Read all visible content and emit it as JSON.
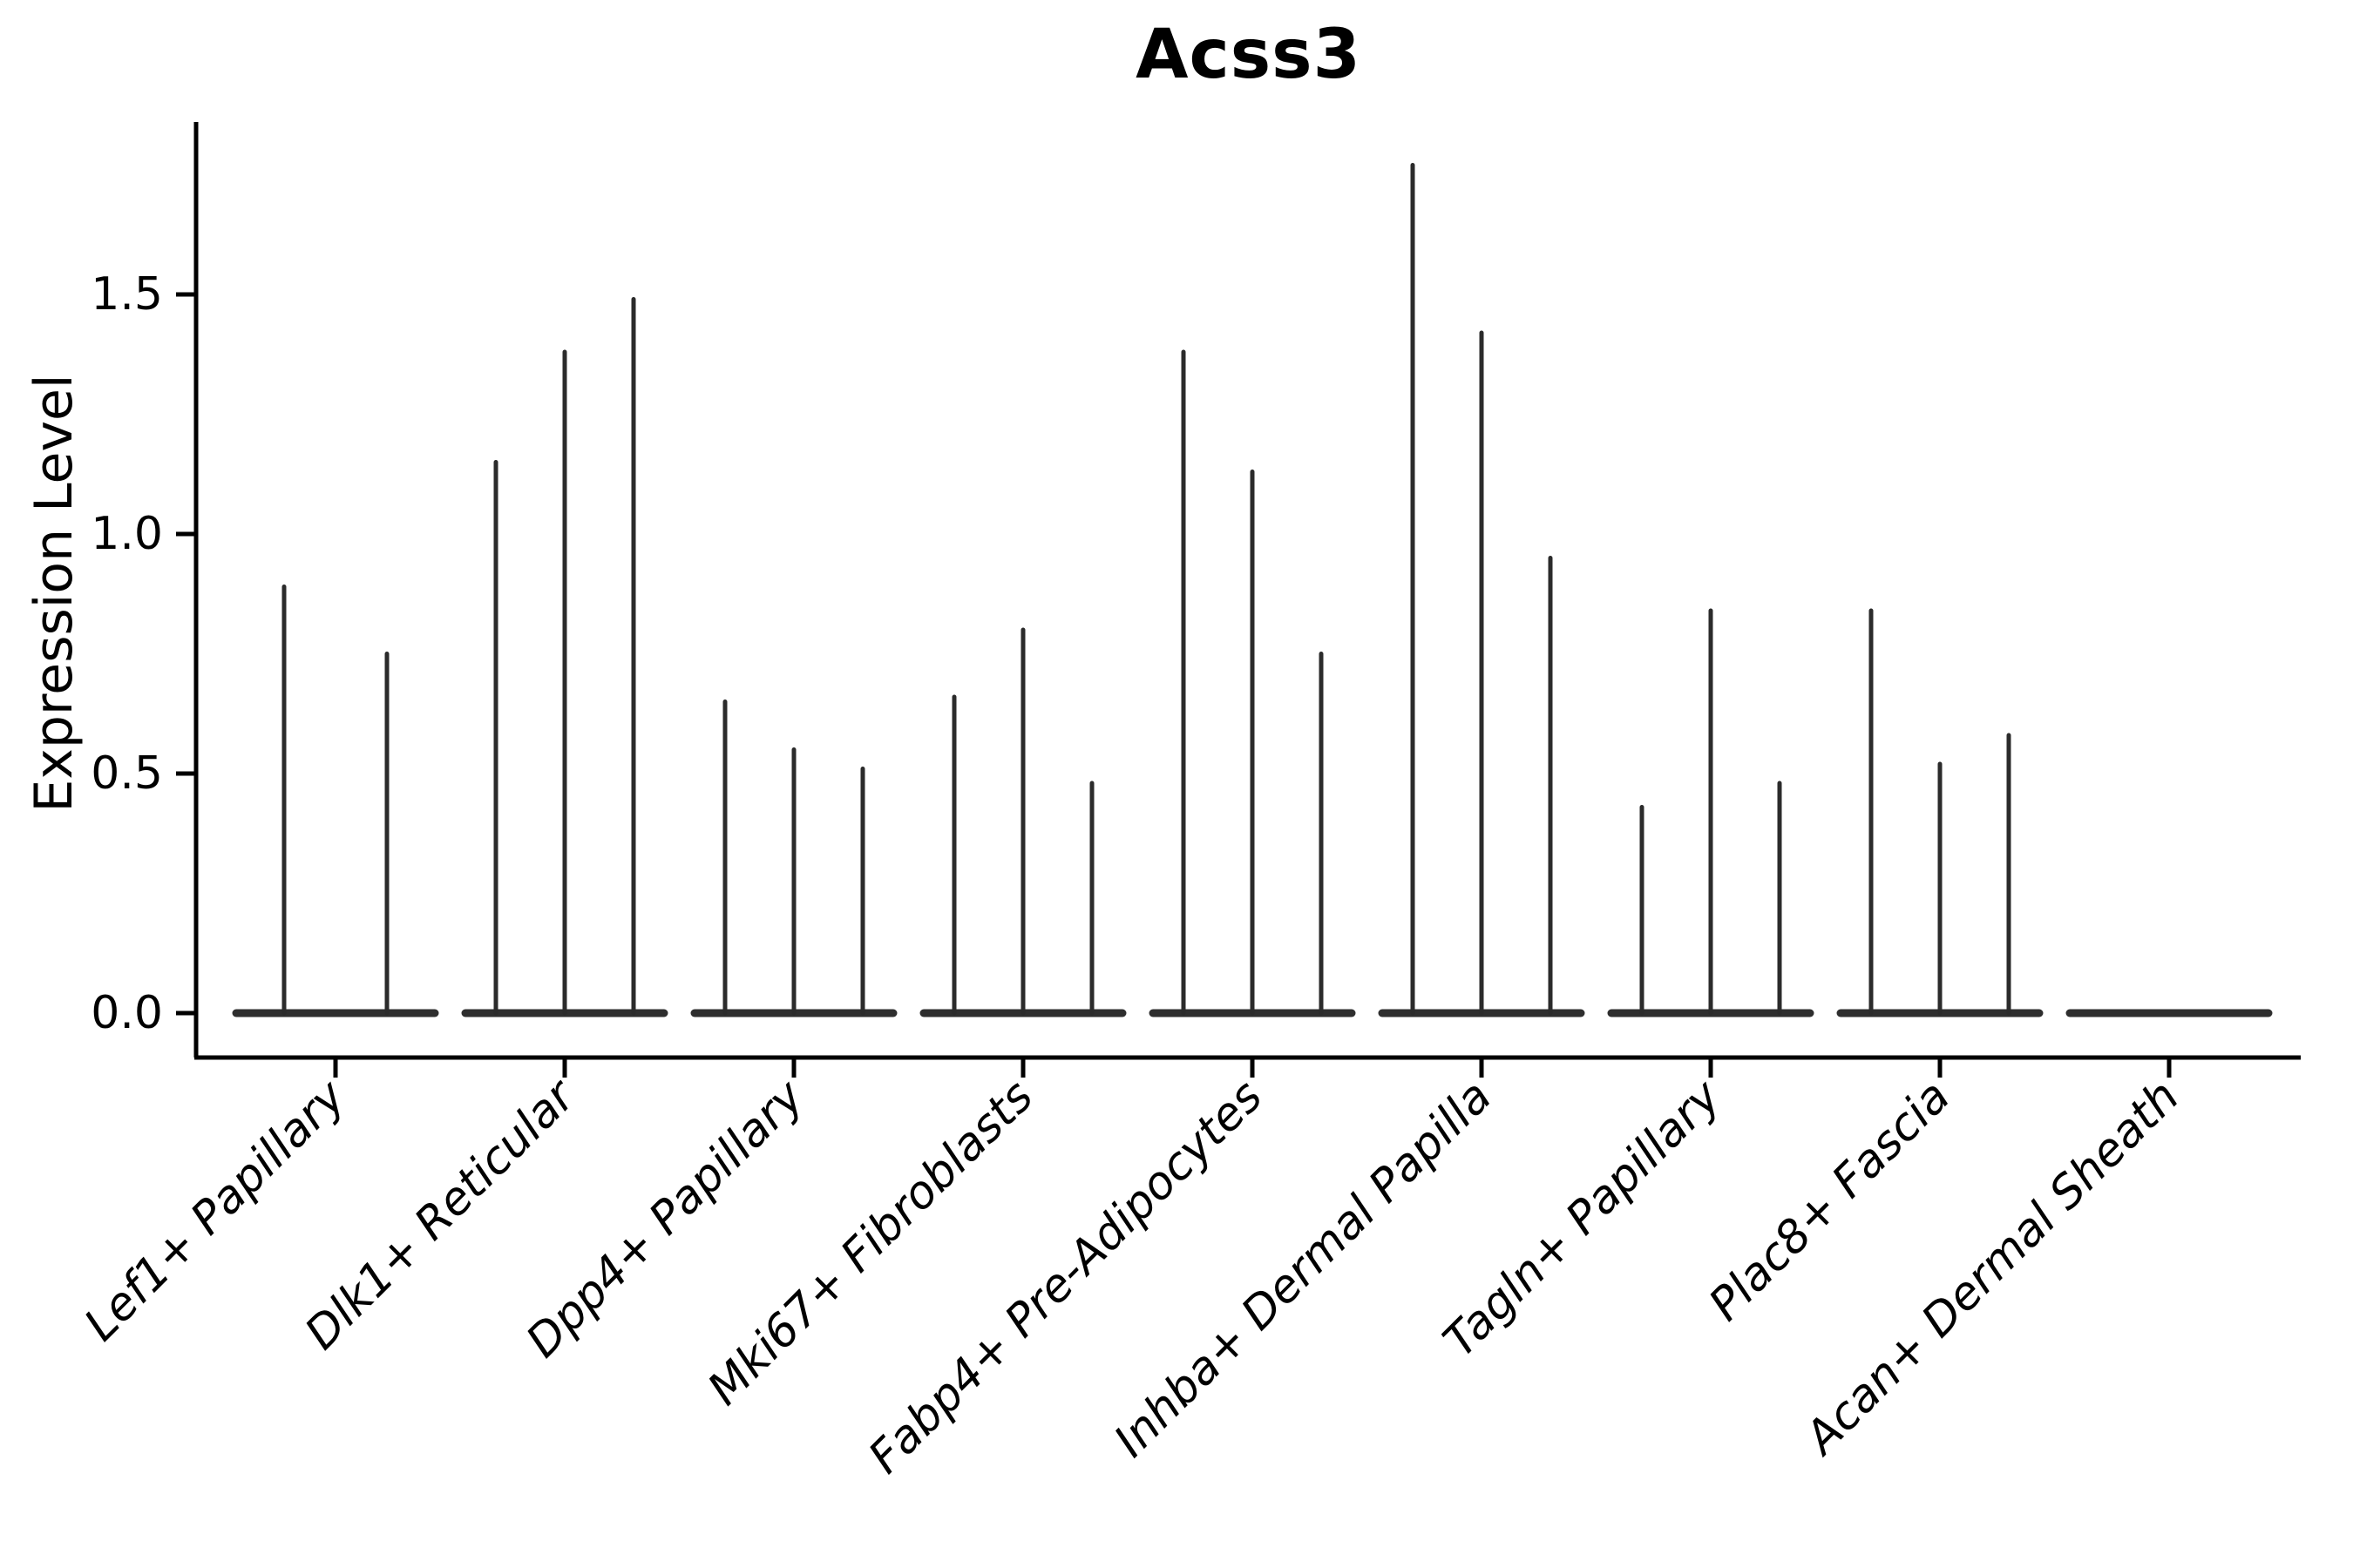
{
  "chart_data": {
    "type": "violin",
    "title": "Acss3",
    "ylabel": "Expression Level",
    "xlabel": "",
    "yticks": [
      0.0,
      0.5,
      1.0,
      1.5
    ],
    "ylim": [
      -0.09,
      1.86
    ],
    "grid": false,
    "legend": "none",
    "note": "Each violin is collapsed to a thin vertical spike (max expression) over a flat baseline at 0; last cluster is entirely 0.",
    "categories": [
      {
        "label": "Lef1+ Papillary",
        "violin_max_expression": [
          0.89,
          0.75
        ]
      },
      {
        "label": "Dlk1+ Reticular",
        "violin_max_expression": [
          1.15,
          1.38,
          1.49
        ]
      },
      {
        "label": "Dpp4+ Papillary",
        "violin_max_expression": [
          0.65,
          0.55,
          0.51
        ]
      },
      {
        "label": "Mki67+ Fibroblasts",
        "violin_max_expression": [
          0.66,
          0.8,
          0.48
        ]
      },
      {
        "label": "Fabp4+ Pre-Adipocytes",
        "violin_max_expression": [
          1.38,
          1.13,
          0.75
        ]
      },
      {
        "label": "Inhba+ Dermal Papilla",
        "violin_max_expression": [
          1.77,
          1.42,
          0.95
        ]
      },
      {
        "label": "Tagln+ Papillary",
        "violin_max_expression": [
          0.43,
          0.84,
          0.48
        ]
      },
      {
        "label": "Plac8+ Fascia",
        "violin_max_expression": [
          0.84,
          0.52,
          0.58
        ]
      },
      {
        "label": "Acan+ Dermal Sheath",
        "violin_max_expression": [
          0.0,
          0.0,
          0.0
        ]
      }
    ],
    "style": {
      "spike_color": "#2b2b2b",
      "baseline_color": "#2e2e2e",
      "axis_color": "#000000",
      "background": "#ffffff"
    }
  }
}
